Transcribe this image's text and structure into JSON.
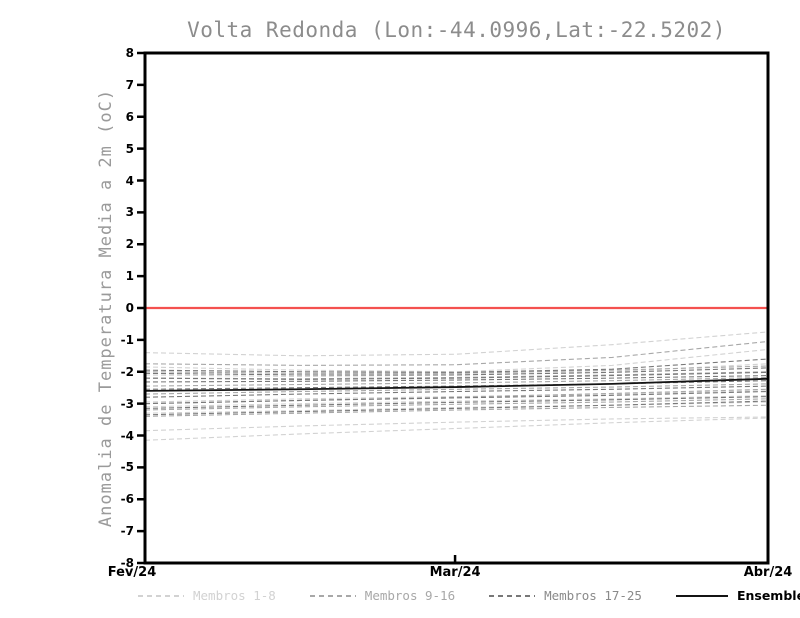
{
  "window": {
    "background": "#ffffff"
  },
  "axes": {
    "frame_color": "#000000",
    "tick_label_color": "#000000",
    "title_color": "#8c8c8c",
    "ylabel_color": "#9a9a9a"
  },
  "chart_data": {
    "type": "line",
    "title": "Volta Redonda (Lon:-44.0996,Lat:-22.5202)",
    "ylabel": "Anomalia de Temperatura Media a 2m (oC)",
    "xlabel": "",
    "ylim": [
      -8,
      8
    ],
    "y_ticks": [
      8,
      7,
      6,
      5,
      4,
      3,
      2,
      1,
      0,
      -1,
      -2,
      -3,
      -4,
      -5,
      -6,
      -7,
      -8
    ],
    "x_ticks": [
      {
        "label": "Fev/24",
        "t": 0.0
      },
      {
        "label": "Mar/24",
        "t": 0.4977
      },
      {
        "label": "Abr/24",
        "t": 1.0
      }
    ],
    "grid": false,
    "legend_position": "bottom",
    "zero_line": {
      "value": 0,
      "color": "#f4514f"
    },
    "t": [
      0,
      0.25,
      0.5,
      0.75,
      1
    ],
    "groups": [
      {
        "name": "Membros 1-8",
        "color": "#d2d2d2",
        "style": "dashed",
        "series": [
          [
            -1.4,
            -1.5,
            -1.45,
            -1.15,
            -0.75
          ],
          [
            -1.85,
            -1.95,
            -2.0,
            -1.8,
            -1.3
          ],
          [
            -2.1,
            -2.15,
            -2.1,
            -2.0,
            -1.75
          ],
          [
            -2.95,
            -2.85,
            -2.78,
            -2.7,
            -2.6
          ],
          [
            -3.1,
            -3.0,
            -2.92,
            -2.85,
            -2.75
          ],
          [
            -3.3,
            -3.22,
            -3.12,
            -3.05,
            -2.95
          ],
          [
            -3.85,
            -3.7,
            -3.58,
            -3.48,
            -3.42
          ],
          [
            -4.15,
            -3.95,
            -3.78,
            -3.6,
            -3.45
          ]
        ]
      },
      {
        "name": "Membros 9-16",
        "color": "#a8a8a8",
        "style": "dashed",
        "series": [
          [
            -1.75,
            -1.8,
            -1.78,
            -1.55,
            -1.05
          ],
          [
            -2.0,
            -2.05,
            -2.05,
            -1.95,
            -1.82
          ],
          [
            -2.2,
            -2.22,
            -2.18,
            -2.1,
            -2.0
          ],
          [
            -2.45,
            -2.4,
            -2.35,
            -2.28,
            -2.18
          ],
          [
            -2.7,
            -2.62,
            -2.55,
            -2.48,
            -2.38
          ],
          [
            -3.0,
            -2.9,
            -2.8,
            -2.68,
            -2.55
          ],
          [
            -3.2,
            -3.1,
            -3.02,
            -2.95,
            -2.85
          ],
          [
            -3.4,
            -3.3,
            -3.2,
            -3.12,
            -3.05
          ]
        ]
      },
      {
        "name": "Membros 17-25",
        "color": "#787878",
        "style": "dashed",
        "series": [
          [
            -1.95,
            -2.0,
            -2.02,
            -1.92,
            -1.6
          ],
          [
            -2.05,
            -2.1,
            -2.1,
            -2.02,
            -1.88
          ],
          [
            -2.2,
            -2.24,
            -2.2,
            -2.12,
            -2.02
          ],
          [
            -2.32,
            -2.3,
            -2.26,
            -2.2,
            -2.12
          ],
          [
            -2.55,
            -2.5,
            -2.45,
            -2.38,
            -2.28
          ],
          [
            -2.8,
            -2.7,
            -2.62,
            -2.55,
            -2.45
          ],
          [
            -3.0,
            -2.9,
            -2.82,
            -2.74,
            -2.62
          ],
          [
            -3.15,
            -3.05,
            -2.96,
            -2.88,
            -2.78
          ],
          [
            -3.35,
            -3.25,
            -3.15,
            -3.05,
            -2.92
          ]
        ]
      }
    ],
    "mean": {
      "name": "Ensemble Mean",
      "color": "#141414",
      "style": "solid",
      "values": [
        -2.6,
        -2.55,
        -2.48,
        -2.38,
        -2.22
      ]
    }
  },
  "legend": {
    "items": [
      {
        "label": "Membros 1-8",
        "color": "#d2d2d2",
        "text_color": "#d2d2d2",
        "style": "dashed"
      },
      {
        "label": "Membros 9-16",
        "color": "#a8a8a8",
        "text_color": "#a8a8a8",
        "style": "dashed"
      },
      {
        "label": "Membros 17-25",
        "color": "#787878",
        "text_color": "#8a8a8a",
        "style": "dashed"
      },
      {
        "label": "Ensemble Mean",
        "color": "#141414",
        "text_color": "#000000",
        "style": "solid"
      }
    ]
  }
}
